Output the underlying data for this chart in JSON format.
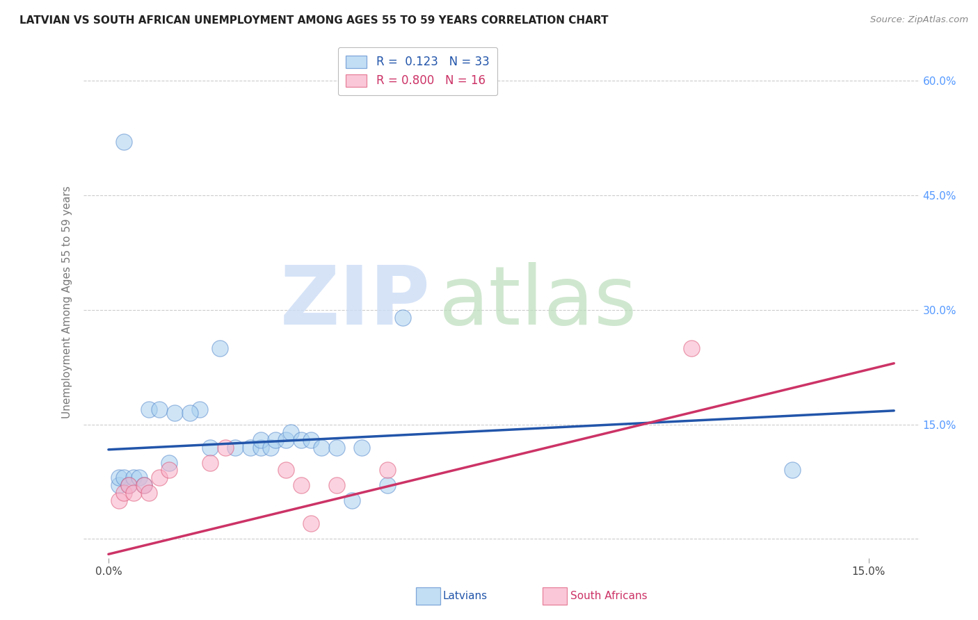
{
  "title": "LATVIAN VS SOUTH AFRICAN UNEMPLOYMENT AMONG AGES 55 TO 59 YEARS CORRELATION CHART",
  "source": "Source: ZipAtlas.com",
  "ylabel": "Unemployment Among Ages 55 to 59 years",
  "xlim": [
    -0.005,
    0.16
  ],
  "ylim": [
    -0.025,
    0.645
  ],
  "ytick_positions": [
    0.0,
    0.15,
    0.3,
    0.45,
    0.6
  ],
  "ytick_labels": [
    "",
    "15.0%",
    "30.0%",
    "45.0%",
    "60.0%"
  ],
  "xtick_positions": [
    0.0,
    0.15
  ],
  "xtick_labels": [
    "0.0%",
    "15.0%"
  ],
  "latvian_R": "0.123",
  "latvian_N": "33",
  "sa_R": "0.800",
  "sa_N": "16",
  "blue_scatter": "#a8d0f0",
  "pink_scatter": "#f8b0c8",
  "blue_edge": "#5588cc",
  "pink_edge": "#dd5577",
  "blue_line": "#2255aa",
  "pink_line": "#cc3366",
  "latvian_scatter_x": [
    0.003,
    0.012,
    0.018,
    0.02,
    0.022,
    0.025,
    0.028,
    0.03,
    0.03,
    0.032,
    0.033,
    0.035,
    0.036,
    0.038,
    0.04,
    0.042,
    0.045,
    0.008,
    0.01,
    0.002,
    0.002,
    0.003,
    0.004,
    0.005,
    0.006,
    0.007,
    0.058,
    0.05,
    0.048,
    0.135,
    0.055,
    0.013,
    0.016
  ],
  "latvian_scatter_y": [
    0.52,
    0.1,
    0.17,
    0.12,
    0.25,
    0.12,
    0.12,
    0.12,
    0.13,
    0.12,
    0.13,
    0.13,
    0.14,
    0.13,
    0.13,
    0.12,
    0.12,
    0.17,
    0.17,
    0.07,
    0.08,
    0.08,
    0.07,
    0.08,
    0.08,
    0.07,
    0.29,
    0.12,
    0.05,
    0.09,
    0.07,
    0.165,
    0.165
  ],
  "sa_scatter_x": [
    0.002,
    0.003,
    0.004,
    0.005,
    0.007,
    0.008,
    0.01,
    0.012,
    0.02,
    0.023,
    0.035,
    0.038,
    0.04,
    0.045,
    0.055,
    0.115
  ],
  "sa_scatter_y": [
    0.05,
    0.06,
    0.07,
    0.06,
    0.07,
    0.06,
    0.08,
    0.09,
    0.1,
    0.12,
    0.09,
    0.07,
    0.02,
    0.07,
    0.09,
    0.25
  ],
  "latvian_trend_x": [
    0.0,
    0.155
  ],
  "latvian_trend_y": [
    0.117,
    0.168
  ],
  "sa_trend_x": [
    0.0,
    0.155
  ],
  "sa_trend_y": [
    -0.02,
    0.23
  ],
  "background_color": "#ffffff",
  "grid_color": "#cccccc",
  "ytick_color": "#5599ff",
  "watermark_zip_color": "#ccddf5",
  "watermark_atlas_color": "#bbddbb"
}
